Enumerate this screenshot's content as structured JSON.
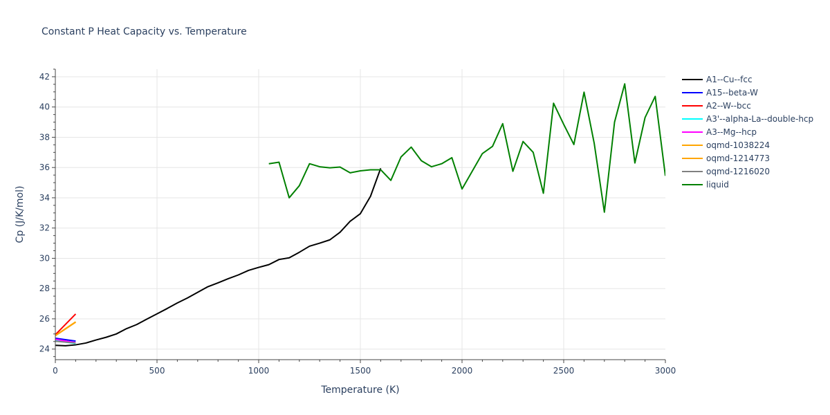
{
  "chart_data": {
    "type": "line",
    "title": "Constant P Heat Capacity vs. Temperature",
    "xlabel": "Temperature (K)",
    "ylabel": "Cp (J/K/mol)",
    "xlim": [
      0,
      3000
    ],
    "ylim": [
      23.3,
      42.5
    ],
    "x_ticks": [
      0,
      500,
      1000,
      1500,
      2000,
      2500,
      3000
    ],
    "x_tick_labels": [
      "0",
      "500",
      "1000",
      "1500",
      "2000",
      "2500",
      "3000"
    ],
    "y_ticks": [
      24,
      26,
      28,
      30,
      32,
      34,
      36,
      38,
      40,
      42
    ],
    "y_tick_labels": [
      "24",
      "26",
      "28",
      "30",
      "32",
      "34",
      "36",
      "38",
      "40",
      "42"
    ],
    "grid": true,
    "legend_position": "right",
    "series": [
      {
        "name": "A1--Cu--fcc",
        "color": "#000000",
        "x": [
          0,
          50,
          100,
          150,
          200,
          250,
          300,
          350,
          400,
          450,
          500,
          550,
          600,
          650,
          700,
          750,
          800,
          850,
          900,
          950,
          1000,
          1050,
          1100,
          1150,
          1200,
          1250,
          1300,
          1350,
          1400,
          1450,
          1500,
          1550,
          1600
        ],
        "y": [
          24.25,
          24.22,
          24.28,
          24.4,
          24.6,
          24.78,
          25.0,
          25.35,
          25.62,
          25.98,
          26.33,
          26.68,
          27.05,
          27.38,
          27.75,
          28.12,
          28.38,
          28.65,
          28.9,
          29.2,
          29.4,
          29.58,
          29.92,
          30.03,
          30.4,
          30.8,
          31.0,
          31.22,
          31.72,
          32.45,
          32.95,
          34.1,
          35.95
        ]
      },
      {
        "name": "A15--beta-W",
        "color": "#0000ff",
        "x": [
          0,
          100
        ],
        "y": [
          24.72,
          24.53
        ]
      },
      {
        "name": "A2--W--bcc",
        "color": "#ff0000",
        "x": [
          0,
          100
        ],
        "y": [
          24.95,
          26.32
        ]
      },
      {
        "name": "A3'--alpha-La--double-hcp",
        "color": "#00ffff",
        "x": [
          0,
          100
        ],
        "y": [
          24.55,
          24.37
        ]
      },
      {
        "name": "A3--Mg--hcp",
        "color": "#ff00ff",
        "x": [
          0,
          100
        ],
        "y": [
          24.65,
          24.42
        ]
      },
      {
        "name": "oqmd-1038224",
        "color": "#ffa500",
        "x": [
          0,
          100
        ],
        "y": [
          24.9,
          25.8
        ]
      },
      {
        "name": "oqmd-1214773",
        "color": "#ffa500",
        "x": [
          0,
          100
        ],
        "y": [
          24.88,
          25.78
        ]
      },
      {
        "name": "oqmd-1216020",
        "color": "#808080",
        "x": [
          0,
          100
        ],
        "y": [
          24.52,
          24.4
        ]
      },
      {
        "name": "liquid",
        "color": "#008000",
        "x": [
          1050,
          1100,
          1150,
          1200,
          1250,
          1300,
          1350,
          1400,
          1450,
          1500,
          1550,
          1600,
          1650,
          1700,
          1750,
          1800,
          1850,
          1900,
          1950,
          2000,
          2050,
          2100,
          2150,
          2200,
          2250,
          2300,
          2350,
          2400,
          2450,
          2500,
          2550,
          2600,
          2650,
          2700,
          2750,
          2800,
          2850,
          2900,
          2950,
          3000
        ],
        "y": [
          36.25,
          36.35,
          34.0,
          34.8,
          36.25,
          36.05,
          35.98,
          36.03,
          35.65,
          35.78,
          35.85,
          35.85,
          35.15,
          36.7,
          37.35,
          36.45,
          36.05,
          36.25,
          36.65,
          34.58,
          35.75,
          36.92,
          37.4,
          38.9,
          35.75,
          37.72,
          37.0,
          34.3,
          40.25,
          38.85,
          37.52,
          40.98,
          37.6,
          33.05,
          39.0,
          41.53,
          36.3,
          39.3,
          40.7,
          35.45
        ]
      }
    ]
  }
}
